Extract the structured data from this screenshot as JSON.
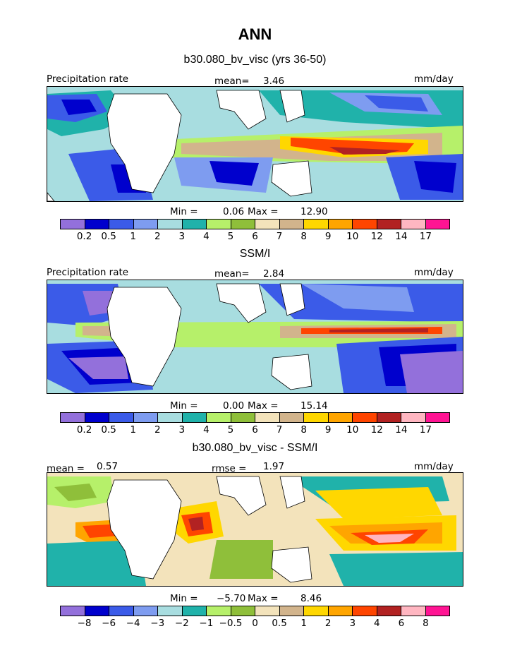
{
  "page_title": "ANN",
  "palette": [
    "#9370db",
    "#0000cd",
    "#3b5be8",
    "#7e9cf0",
    "#a8dde0",
    "#20b2aa",
    "#b6f06a",
    "#8fbf3a",
    "#f3e3bb",
    "#d2b48c",
    "#ffd700",
    "#ffa500",
    "#ff4500",
    "#b22222",
    "#ffb6c1",
    "#ff1493"
  ],
  "panels": [
    {
      "subtitle": "b30.080_bv_visc (yrs 36-50)",
      "left_label": "Precipitation rate",
      "mid_label": "mean=",
      "mid_value": "3.46",
      "right_label": "mm/day",
      "min_label": "Min =",
      "min_value": "0.06",
      "max_label": "Max =",
      "max_value": "12.90",
      "ticks": [
        "0.2",
        "0.5",
        "1",
        "2",
        "3",
        "4",
        "5",
        "6",
        "7",
        "8",
        "9",
        "10",
        "12",
        "14",
        "17"
      ]
    },
    {
      "subtitle": "SSM/I",
      "left_label": "Precipitation rate",
      "mid_label": "mean=",
      "mid_value": "2.84",
      "right_label": "mm/day",
      "min_label": "Min =",
      "min_value": "0.00",
      "max_label": "Max =",
      "max_value": "15.14",
      "ticks": [
        "0.2",
        "0.5",
        "1",
        "2",
        "3",
        "4",
        "5",
        "6",
        "7",
        "8",
        "9",
        "10",
        "12",
        "14",
        "17"
      ]
    },
    {
      "subtitle": "b30.080_bv_visc - SSM/I",
      "left_label": "mean =",
      "left_value": "0.57",
      "mid_label": "rmse =",
      "mid_value": "1.97",
      "right_label": "mm/day",
      "min_label": "Min =",
      "min_value": "−5.70",
      "max_label": "Max =",
      "max_value": "8.46",
      "ticks": [
        "−8",
        "−6",
        "−4",
        "−3",
        "−2",
        "−1",
        "−0.5",
        "0",
        "0.5",
        "1",
        "2",
        "3",
        "4",
        "6",
        "8"
      ]
    }
  ]
}
